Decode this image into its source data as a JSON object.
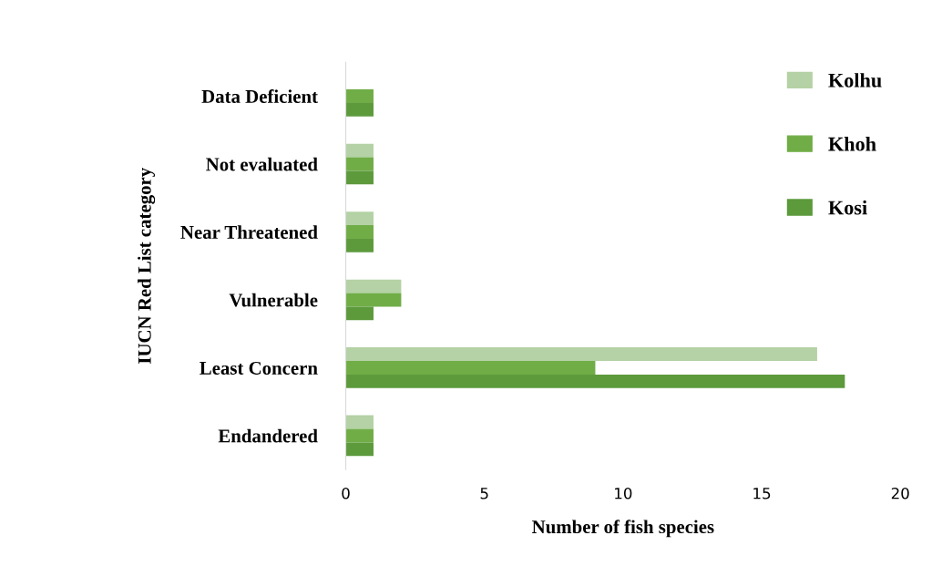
{
  "chart_data": {
    "type": "bar",
    "orientation": "horizontal",
    "xlabel": "Number of fish species",
    "ylabel": "IUCN Red List category",
    "categories": [
      "Data Deficient",
      "Not evaluated",
      "Near Threatened",
      "Vulnerable",
      "Least Concern",
      "Endandered"
    ],
    "series": [
      {
        "name": "Kolhu",
        "color": "#b4d2a5",
        "values": [
          0,
          1,
          1,
          2,
          17,
          1
        ]
      },
      {
        "name": "Khoh",
        "color": "#70ad47",
        "values": [
          1,
          1,
          1,
          2,
          9,
          1
        ]
      },
      {
        "name": "Kosi",
        "color": "#5c9a3c",
        "values": [
          1,
          1,
          1,
          1,
          18,
          1
        ]
      }
    ],
    "xlim": [
      0,
      20
    ],
    "xticks": [
      0,
      5,
      10,
      15,
      20
    ],
    "grid": false,
    "legend": "top right"
  }
}
